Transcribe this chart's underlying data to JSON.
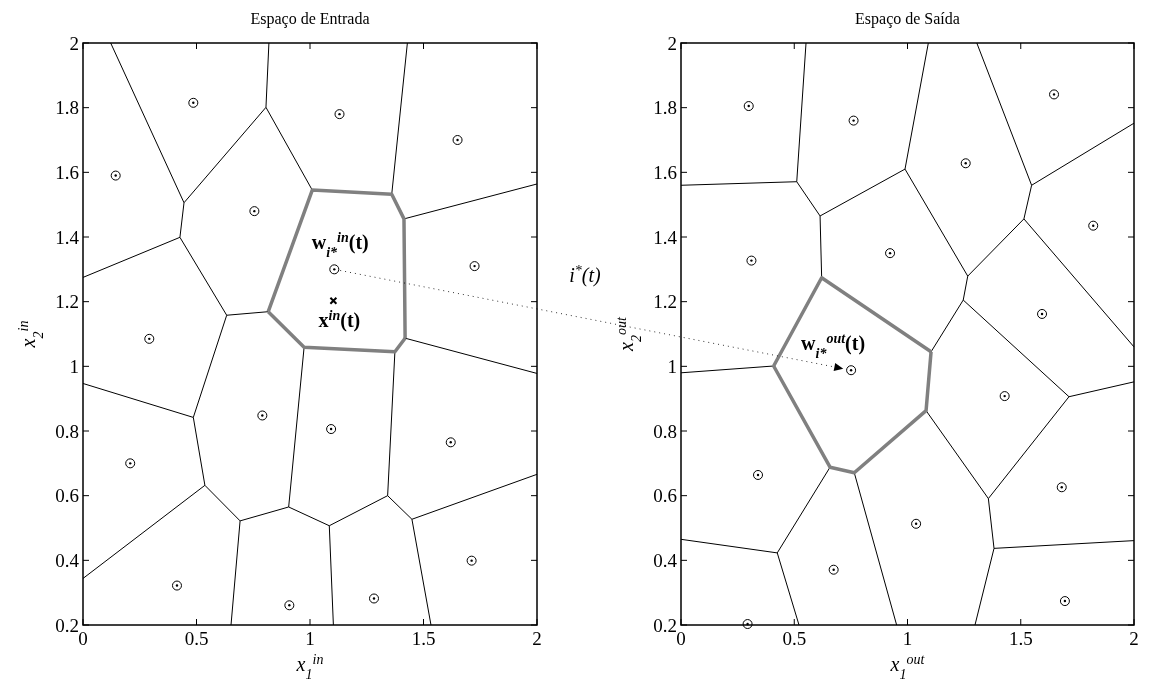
{
  "chart_data": [
    {
      "type": "scatter",
      "title": "Espaço de Entrada",
      "xlabel": "x$_{1}$$^{in}$",
      "ylabel": "x$_{2}$$^{in}$",
      "xlim": [
        0,
        2
      ],
      "ylim": [
        0.2,
        2
      ],
      "xticks": [
        0,
        0.5,
        1,
        1.5,
        2
      ],
      "yticks": [
        0.2,
        0.4,
        0.6,
        0.8,
        1,
        1.2,
        1.4,
        1.6,
        1.8,
        2
      ],
      "series": [
        {
          "type": "scatter",
          "marker": "circle",
          "color": "#000000",
          "x": [
            0.486,
            0.144,
            1.13,
            1.65,
            0.755,
            1.107,
            1.725,
            0.292,
            0.79,
            1.093,
            1.62,
            0.208,
            1.712,
            0.414,
            0.909,
            1.282
          ],
          "values": [
            1.815,
            1.59,
            1.78,
            1.7,
            1.48,
            1.3,
            1.31,
            1.085,
            0.848,
            0.806,
            0.765,
            0.7,
            0.399,
            0.322,
            0.261,
            0.282
          ]
        },
        {
          "type": "scatter",
          "marker": "cross",
          "color": "#000000",
          "x": [
            1.103
          ],
          "values": [
            1.203
          ]
        },
        {
          "type": "line",
          "color": "#000000",
          "x": [
            0.122,
            0.445,
            0.427,
            0
          ],
          "values": [
            2,
            1.506,
            1.399,
            1.275
          ]
        },
        {
          "type": "line",
          "color": "#000000",
          "x": [
            0.445,
            0.806,
            0.819
          ],
          "values": [
            1.506,
            1.801,
            2
          ]
        },
        {
          "type": "line",
          "color": "#000000",
          "x": [
            0.806,
            1.01
          ],
          "values": [
            1.801,
            1.545
          ]
        },
        {
          "type": "line",
          "color": "#000000",
          "x": [
            1.429,
            1.36
          ],
          "values": [
            2,
            1.532
          ]
        },
        {
          "type": "line",
          "color": "#000000",
          "x": [
            1.414,
            2
          ],
          "values": [
            1.456,
            1.564
          ]
        },
        {
          "type": "line",
          "color": "#000000",
          "x": [
            0.427,
            0.633,
            0.816
          ],
          "values": [
            1.399,
            1.158,
            1.169
          ]
        },
        {
          "type": "line",
          "color": "#000000",
          "x": [
            0.633,
            0.486,
            0
          ],
          "values": [
            1.158,
            0.842,
            0.947
          ]
        },
        {
          "type": "line",
          "color": "#000000",
          "x": [
            0.486,
            0.537,
            0
          ],
          "values": [
            0.842,
            0.632,
            0.344
          ]
        },
        {
          "type": "line",
          "color": "#000000",
          "x": [
            0.537,
            0.692,
            0.906,
            0.974
          ],
          "values": [
            0.632,
            0.522,
            0.565,
            1.059
          ]
        },
        {
          "type": "line",
          "color": "#000000",
          "x": [
            0.692,
            0.652
          ],
          "values": [
            0.522,
            0.2
          ]
        },
        {
          "type": "line",
          "color": "#000000",
          "x": [
            0.906,
            1.085,
            1.342,
            1.374
          ],
          "values": [
            0.565,
            0.507,
            0.6,
            1.045
          ]
        },
        {
          "type": "line",
          "color": "#000000",
          "x": [
            1.085,
            1.103
          ],
          "values": [
            0.507,
            0.2
          ]
        },
        {
          "type": "line",
          "color": "#000000",
          "x": [
            1.342,
            1.449,
            1.533
          ],
          "values": [
            0.6,
            0.527,
            0.2
          ]
        },
        {
          "type": "line",
          "color": "#000000",
          "x": [
            1.449,
            2
          ],
          "values": [
            0.527,
            0.666
          ]
        },
        {
          "type": "line",
          "color": "#000000",
          "x": [
            1.419,
            2
          ],
          "values": [
            1.087,
            0.978
          ]
        },
        {
          "type": "line",
          "color": "#808080",
          "x": [
            0.816,
            1.01,
            1.36,
            1.414,
            1.419
          ],
          "values": [
            1.169,
            1.545,
            1.532,
            1.456,
            1.087
          ]
        },
        {
          "type": "line",
          "color": "#808080",
          "x": [
            0.816,
            0.974,
            1.374,
            1.419
          ],
          "values": [
            1.169,
            1.059,
            1.045,
            1.087
          ]
        }
      ],
      "annotations": [
        {
          "text": "w$_{i*}$$^{in}$(t)",
          "x": 1.107,
          "y": 1.3
        },
        {
          "text": "x$^{in}$(t)",
          "x": 1.103,
          "y": 1.203
        },
        "i$^{*}$(t)"
      ]
    },
    {
      "type": "scatter",
      "title": "Espaço de Saída",
      "xlabel": "x$_{1}$$^{out}$",
      "ylabel": "x$_{2}$$^{out}$",
      "xlim": [
        0,
        2
      ],
      "ylim": [
        0.2,
        2
      ],
      "xticks": [
        0,
        0.5,
        1,
        1.5,
        2
      ],
      "yticks": [
        0.2,
        0.4,
        0.6,
        0.8,
        1,
        1.2,
        1.4,
        1.6,
        1.8,
        2
      ],
      "series": [
        {
          "type": "scatter",
          "marker": "circle",
          "color": "#000000",
          "x": [
            0.299,
            0.762,
            1.257,
            1.647,
            1.82,
            0.311,
            0.923,
            1.594,
            0.751,
            1.429,
            0.34,
            1.681,
            1.038,
            0.674,
            1.695,
            0.294
          ],
          "values": [
            1.805,
            1.76,
            1.628,
            1.841,
            1.435,
            1.327,
            1.35,
            1.162,
            0.988,
            0.908,
            0.664,
            0.626,
            0.513,
            0.371,
            0.274,
            0.203
          ]
        },
        {
          "type": "line",
          "color": "#000000",
          "x": [
            0.552,
            0.511,
            0
          ],
          "values": [
            2,
            1.571,
            1.56
          ]
        },
        {
          "type": "line",
          "color": "#000000",
          "x": [
            0.511,
            0.614,
            0.989,
            1.092
          ],
          "values": [
            1.571,
            1.465,
            1.61,
            2
          ]
        },
        {
          "type": "line",
          "color": "#000000",
          "x": [
            0.989,
            1.266,
            1.514,
            1.548,
            1.306
          ],
          "values": [
            1.61,
            1.279,
            1.456,
            1.56,
            2
          ]
        },
        {
          "type": "line",
          "color": "#000000",
          "x": [
            1.548,
            2
          ],
          "values": [
            1.56,
            1.752
          ]
        },
        {
          "type": "line",
          "color": "#000000",
          "x": [
            1.514,
            2
          ],
          "values": [
            1.456,
            1.06
          ]
        },
        {
          "type": "line",
          "color": "#000000",
          "x": [
            1.266,
            1.246,
            1.104
          ],
          "values": [
            1.279,
            1.205,
            1.045
          ]
        },
        {
          "type": "line",
          "color": "#000000",
          "x": [
            1.246,
            1.713,
            2
          ],
          "values": [
            1.205,
            0.906,
            0.952
          ]
        },
        {
          "type": "line",
          "color": "#000000",
          "x": [
            1.713,
            1.357,
            1.082
          ],
          "values": [
            0.906,
            0.591,
            0.863
          ]
        },
        {
          "type": "line",
          "color": "#000000",
          "x": [
            1.357,
            1.382,
            2
          ],
          "values": [
            0.591,
            0.437,
            0.461
          ]
        },
        {
          "type": "line",
          "color": "#000000",
          "x": [
            1.382,
            1.298
          ],
          "values": [
            0.437,
            0.2
          ]
        },
        {
          "type": "line",
          "color": "#000000",
          "x": [
            0.614,
            0.621
          ],
          "values": [
            1.465,
            1.274
          ]
        },
        {
          "type": "line",
          "color": "#000000",
          "x": [
            0.409,
            0
          ],
          "values": [
            1.001,
            0.98
          ]
        },
        {
          "type": "line",
          "color": "#000000",
          "x": [
            0.658,
            0.425,
            0
          ],
          "values": [
            0.688,
            0.423,
            0.465
          ]
        },
        {
          "type": "line",
          "color": "#000000",
          "x": [
            0.425,
            0.521
          ],
          "values": [
            0.423,
            0.2
          ]
        },
        {
          "type": "line",
          "color": "#000000",
          "x": [
            0.765,
            0.952
          ],
          "values": [
            0.671,
            0.2
          ]
        },
        {
          "type": "line",
          "color": "#808080",
          "x": [
            0.409,
            0.621,
            1.104
          ],
          "values": [
            1.001,
            1.274,
            1.045
          ]
        },
        {
          "type": "line",
          "color": "#808080",
          "x": [
            0.409,
            0.658,
            0.765,
            1.082,
            1.104
          ],
          "values": [
            1.001,
            0.688,
            0.671,
            0.863,
            1.045
          ]
        }
      ],
      "annotations": [
        {
          "text": "w$_{i*}$$^{out}$(t)",
          "x": 0.751,
          "y": 0.988
        }
      ]
    }
  ]
}
